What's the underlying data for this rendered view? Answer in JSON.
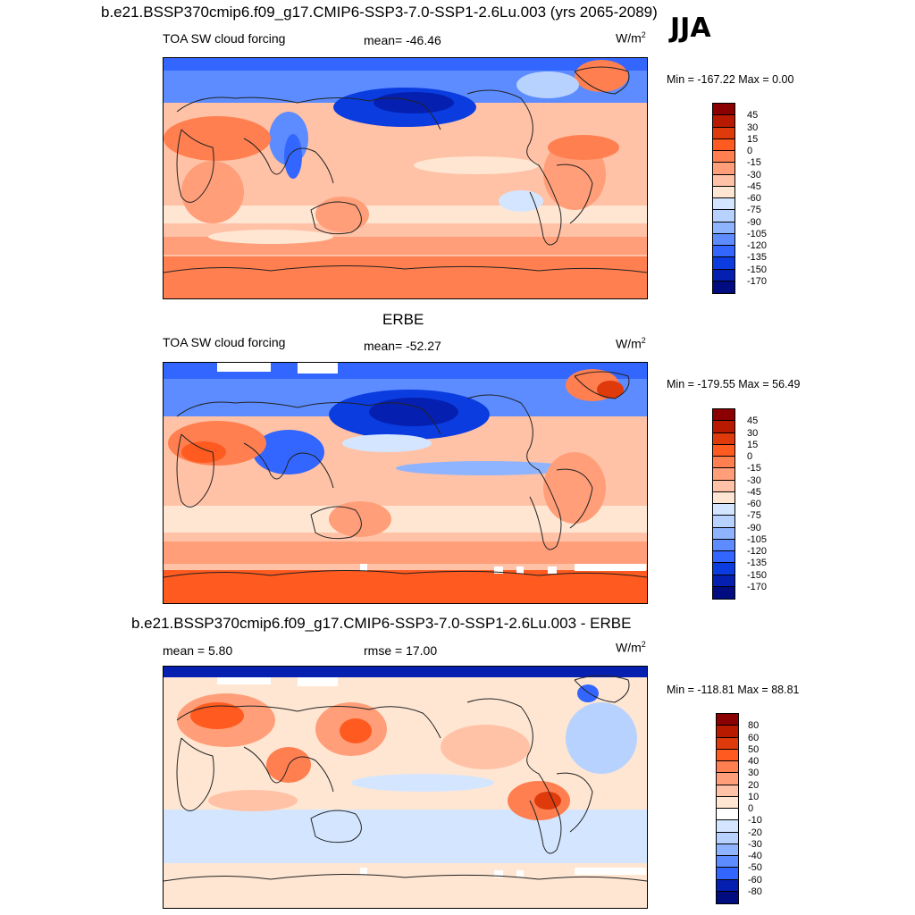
{
  "figure": {
    "season": "JJA",
    "main_title": "b.e21.BSSP370cmip6.f09_g17.CMIP6-SSP3-7.0-SSP1-2.6Lu.003 (yrs 2065-2089)",
    "erbe_title": "ERBE",
    "diff_title": "b.e21.BSSP370cmip6.f09_g17.CMIP6-SSP3-7.0-SSP1-2.6Lu.003 - ERBE"
  },
  "panels": [
    {
      "id": "model",
      "variable": "TOA SW cloud forcing",
      "mean_label": "mean= -46.46",
      "unit": "W/m",
      "unit_exp": "2",
      "minmax": "Min = -167.22 Max =   0.00",
      "colorbar": {
        "labels": [
          "45",
          "30",
          "15",
          "0",
          "-15",
          "-30",
          "-45",
          "-60",
          "-75",
          "-90",
          "-105",
          "-120",
          "-135",
          "-150",
          "-170"
        ],
        "colors": [
          "#8b0000",
          "#b81a00",
          "#de3a0c",
          "#ff5a1f",
          "#ff7f50",
          "#ff9e78",
          "#ffc2a6",
          "#ffe6d2",
          "#d4e6ff",
          "#b8d2ff",
          "#8fb4ff",
          "#5c8cff",
          "#3366ff",
          "#0a3ce0",
          "#0520b0",
          "#000c80"
        ]
      }
    },
    {
      "id": "erbe",
      "variable": "TOA SW cloud forcing",
      "mean_label": "mean= -52.27",
      "unit": "W/m",
      "unit_exp": "2",
      "minmax": "Min = -179.55 Max =  56.49",
      "colorbar": {
        "labels": [
          "45",
          "30",
          "15",
          "0",
          "-15",
          "-30",
          "-45",
          "-60",
          "-75",
          "-90",
          "-105",
          "-120",
          "-135",
          "-150",
          "-170"
        ],
        "colors": [
          "#8b0000",
          "#b81a00",
          "#de3a0c",
          "#ff5a1f",
          "#ff7f50",
          "#ff9e78",
          "#ffc2a6",
          "#ffe6d2",
          "#d4e6ff",
          "#b8d2ff",
          "#8fb4ff",
          "#5c8cff",
          "#3366ff",
          "#0a3ce0",
          "#0520b0",
          "#000c80"
        ]
      }
    },
    {
      "id": "diff",
      "mean_label": "mean =   5.80",
      "rmse_label": "rmse =  17.00",
      "unit": "W/m",
      "unit_exp": "2",
      "minmax": "Min = -118.81 Max =  88.81",
      "colorbar": {
        "labels": [
          "80",
          "60",
          "50",
          "40",
          "30",
          "20",
          "10",
          "0",
          "-10",
          "-20",
          "-30",
          "-40",
          "-50",
          "-60",
          "-80"
        ],
        "colors": [
          "#8b0000",
          "#b81a00",
          "#de3a0c",
          "#ff5a1f",
          "#ff7f50",
          "#ff9e78",
          "#ffc2a6",
          "#ffe6d2",
          "#ffffff",
          "#d4e6ff",
          "#b8d2ff",
          "#8fb4ff",
          "#5c8cff",
          "#3366ff",
          "#0520b0",
          "#000c80"
        ]
      }
    }
  ]
}
